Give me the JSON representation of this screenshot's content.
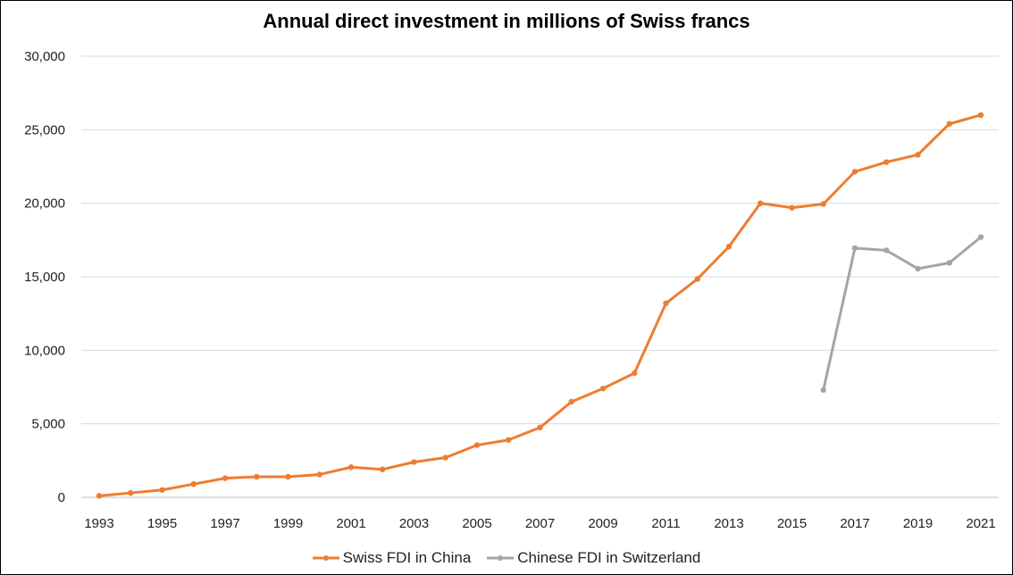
{
  "chart_data": {
    "type": "line",
    "title": "Annual direct investment in millions of Swiss francs",
    "xlabel": "",
    "ylabel": "",
    "x": [
      1993,
      1994,
      1995,
      1996,
      1997,
      1998,
      1999,
      2000,
      2001,
      2002,
      2003,
      2004,
      2005,
      2006,
      2007,
      2008,
      2009,
      2010,
      2011,
      2012,
      2013,
      2014,
      2015,
      2016,
      2017,
      2018,
      2019,
      2020,
      2021
    ],
    "x_tick_labels": [
      "1993",
      "1995",
      "1997",
      "1999",
      "2001",
      "2003",
      "2005",
      "2007",
      "2009",
      "2011",
      "2013",
      "2015",
      "2017",
      "2019",
      "2021"
    ],
    "y_tick_labels": [
      "0",
      "5,000",
      "10,000",
      "15,000",
      "20,000",
      "25,000",
      "30,000"
    ],
    "ylim": [
      0,
      30000
    ],
    "grid": "horizontal",
    "legend_position": "bottom",
    "series": [
      {
        "name": "Swiss FDI in China",
        "color": "#ED7D31",
        "values": [
          100,
          300,
          500,
          900,
          1300,
          1400,
          1400,
          1550,
          2050,
          1900,
          2400,
          2700,
          3550,
          3900,
          4750,
          6500,
          7400,
          8450,
          13200,
          14850,
          17050,
          20000,
          19700,
          19950,
          22150,
          22800,
          23300,
          25400,
          26000
        ]
      },
      {
        "name": "Chinese FDI in Switzerland",
        "color": "#A5A5A5",
        "values": [
          null,
          null,
          null,
          null,
          null,
          null,
          null,
          null,
          null,
          null,
          null,
          null,
          null,
          null,
          null,
          null,
          null,
          null,
          null,
          null,
          null,
          null,
          null,
          7300,
          16950,
          16800,
          15550,
          15950,
          17700
        ]
      }
    ]
  }
}
